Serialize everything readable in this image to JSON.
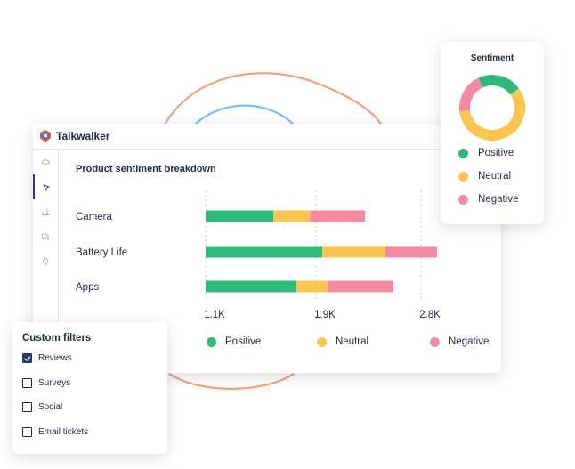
{
  "app": {
    "brand": "Talkwalker"
  },
  "sidebar": {
    "items": [
      {
        "icon": "cloud-icon",
        "active": false
      },
      {
        "icon": "cursor-icon",
        "active": true
      },
      {
        "icon": "bar-chart-icon",
        "active": false
      },
      {
        "icon": "chat-icon",
        "active": false
      },
      {
        "icon": "location-pin-icon",
        "active": false
      }
    ]
  },
  "chart_data": {
    "type": "bar",
    "stacked": true,
    "orientation": "horizontal",
    "title": "Product sentiment breakdown",
    "categories": [
      "Camera",
      "Battery Life",
      "Apps"
    ],
    "series": [
      {
        "name": "Positive",
        "color": "#2fb97a",
        "values": [
          0.68,
          1.17,
          0.91
        ]
      },
      {
        "name": "Neutral",
        "color": "#fcc451",
        "values": [
          0.37,
          0.63,
          0.31
        ]
      },
      {
        "name": "Negative",
        "color": "#f28aa0",
        "values": [
          0.55,
          0.52,
          0.66
        ]
      }
    ],
    "x_ticks": [
      "1.1K",
      "1.9K",
      "2.8K"
    ],
    "grid": "dotted vertical",
    "legend": "bottom"
  },
  "sentiment": {
    "title": "Sentiment",
    "slices": [
      {
        "name": "Positive",
        "color": "#2fb97a",
        "value": 22
      },
      {
        "name": "Neutral",
        "color": "#fcc451",
        "value": 58
      },
      {
        "name": "Negative",
        "color": "#f28aa0",
        "value": 20
      }
    ]
  },
  "filters": {
    "title": "Custom filters",
    "items": [
      {
        "label": "Reviews",
        "checked": true
      },
      {
        "label": "Surveys",
        "checked": false
      },
      {
        "label": "Social",
        "checked": false
      },
      {
        "label": "Email tickets",
        "checked": false
      }
    ]
  }
}
